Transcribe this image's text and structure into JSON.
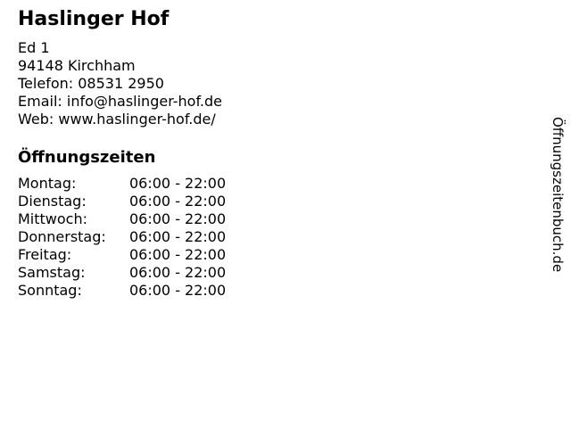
{
  "page": {
    "title": "Haslinger Hof",
    "address_lines": [
      "Ed 1",
      "94148 Kirchham"
    ],
    "contact": {
      "phone_label": "Telefon:",
      "phone_value": "08531 2950",
      "email_label": "Email:",
      "email_value": "info@haslinger-hof.de",
      "web_label": "Web:",
      "web_value": "www.haslinger-hof.de/"
    },
    "hours_heading": "Öffnungszeiten",
    "hours": [
      {
        "day": "Montag:",
        "time": "06:00 - 22:00"
      },
      {
        "day": "Dienstag:",
        "time": "06:00 - 22:00"
      },
      {
        "day": "Mittwoch:",
        "time": "06:00 - 22:00"
      },
      {
        "day": "Donnerstag:",
        "time": "06:00 - 22:00"
      },
      {
        "day": "Freitag:",
        "time": "06:00 - 22:00"
      },
      {
        "day": "Samstag:",
        "time": "06:00 - 22:00"
      },
      {
        "day": "Sonntag:",
        "time": "06:00 - 22:00"
      }
    ],
    "watermark": "Öffnungszeitenbuch.de",
    "colors": {
      "text": "#000000",
      "background": "#ffffff"
    }
  }
}
